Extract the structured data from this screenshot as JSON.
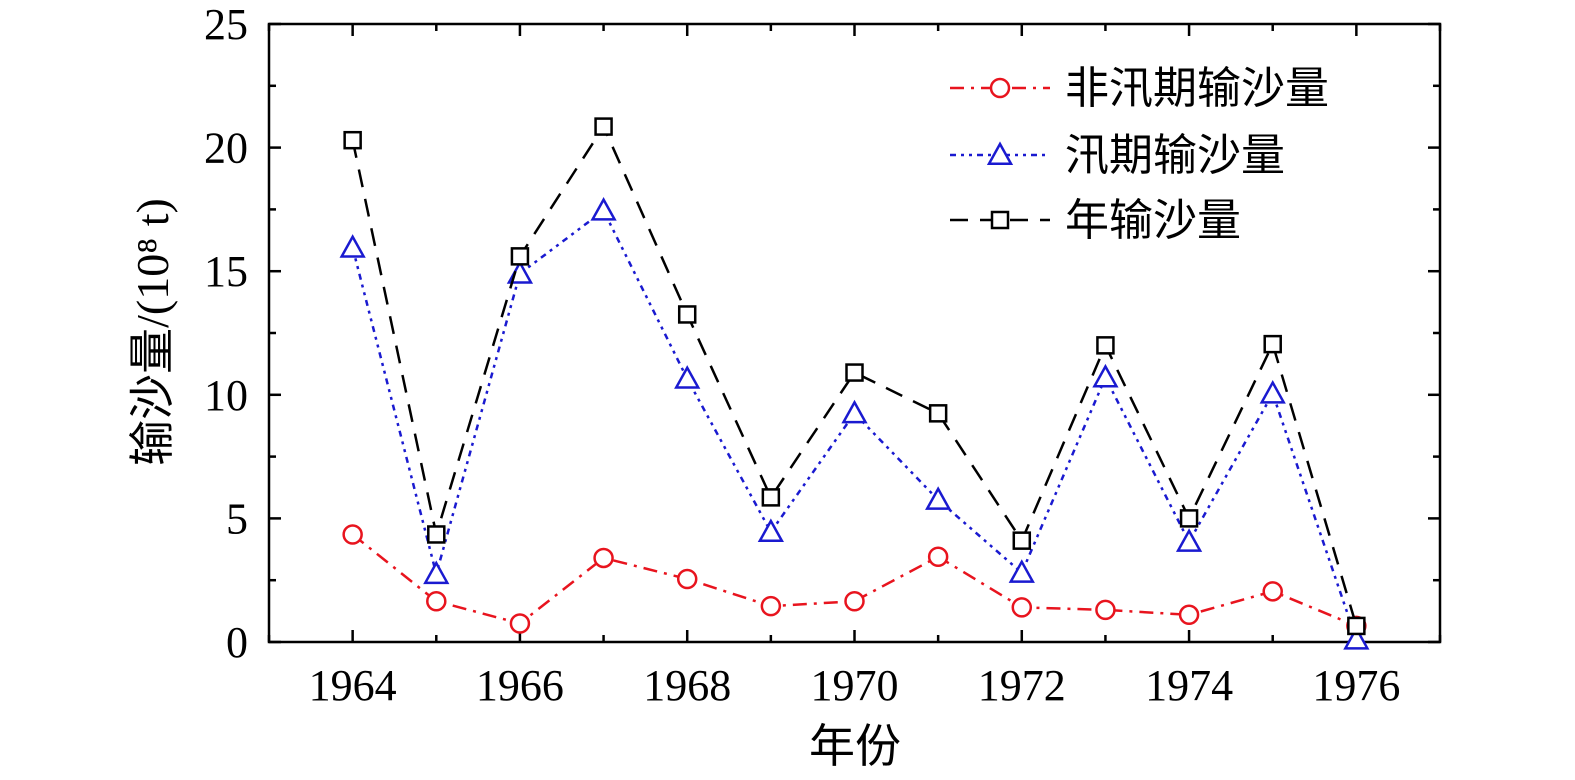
{
  "chart_data": {
    "type": "line",
    "xlabel": "年份",
    "ylabel": "输沙量/(10⁸ t)",
    "xlim": [
      1963,
      1977
    ],
    "ylim": [
      0,
      25
    ],
    "xticks": [
      1964,
      1966,
      1968,
      1970,
      1972,
      1974,
      1976
    ],
    "yticks": [
      0,
      5,
      10,
      15,
      20,
      25
    ],
    "legend_position": "top-right",
    "grid": false,
    "x": [
      1964,
      1965,
      1966,
      1967,
      1968,
      1969,
      1970,
      1971,
      1972,
      1973,
      1974,
      1975,
      1976
    ],
    "series": [
      {
        "name": "非汛期输沙量",
        "color": "#e8141e",
        "marker": "circle",
        "line_style": "dash-dot",
        "values": [
          4.35,
          1.65,
          0.75,
          3.4,
          2.55,
          1.45,
          1.65,
          3.45,
          1.4,
          1.3,
          1.1,
          2.05,
          0.65
        ]
      },
      {
        "name": "汛期输沙量",
        "color": "#1a1ad0",
        "marker": "triangle",
        "line_style": "dash-dot-dot",
        "values": [
          15.95,
          2.75,
          14.9,
          17.45,
          10.65,
          4.45,
          9.25,
          5.75,
          2.8,
          10.7,
          4.05,
          10.05,
          0.1
        ]
      },
      {
        "name": "年输沙量",
        "color": "#000000",
        "marker": "square",
        "line_style": "dashed",
        "values": [
          20.3,
          4.35,
          15.6,
          20.85,
          13.25,
          5.85,
          10.9,
          9.25,
          4.1,
          12.0,
          5.0,
          12.05,
          0.65
        ]
      }
    ]
  }
}
